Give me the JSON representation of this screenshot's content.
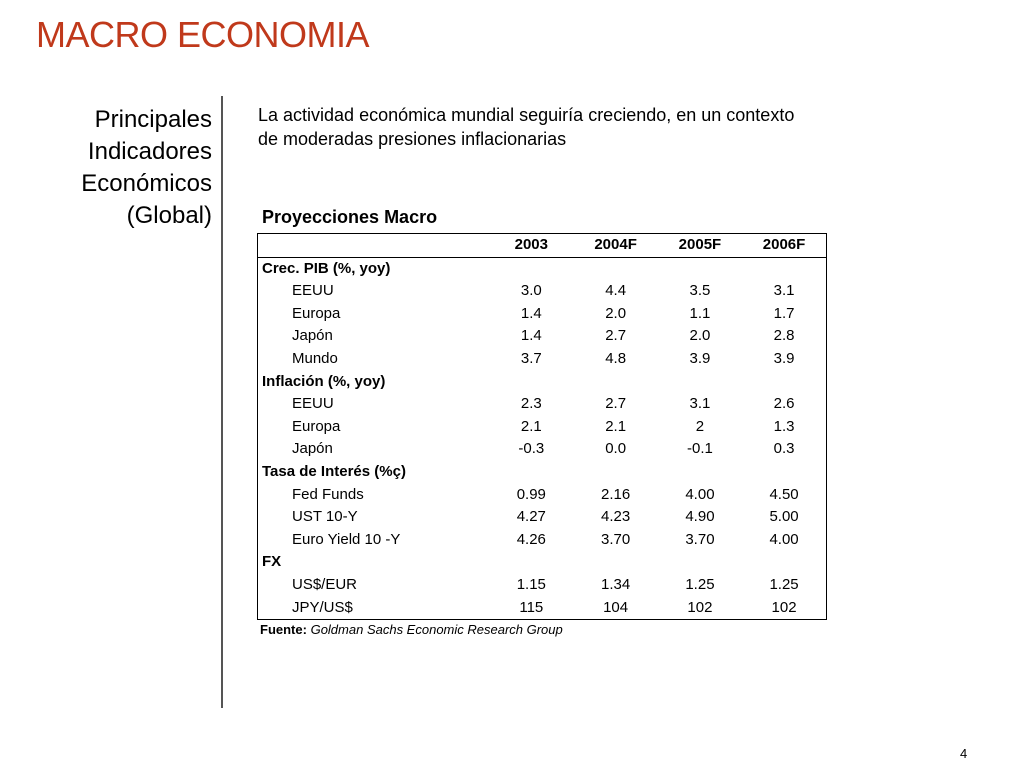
{
  "title": "MACRO ECONOMIA",
  "side_heading": [
    "Principales",
    "Indicadores",
    "Económicos",
    "(Global)"
  ],
  "subtitle": "La actividad económica mundial seguiría creciendo, en un contexto de moderadas presiones inflacionarias",
  "table": {
    "title": "Proyecciones Macro",
    "columns": [
      "2003",
      "2004F",
      "2005F",
      "2006F"
    ],
    "sections": [
      {
        "label": "Crec. PIB (%, yoy)",
        "rows": [
          {
            "label": "EEUU",
            "values": [
              "3.0",
              "4.4",
              "3.5",
              "3.1"
            ]
          },
          {
            "label": "Europa",
            "values": [
              "1.4",
              "2.0",
              "1.1",
              "1.7"
            ]
          },
          {
            "label": "Japón",
            "values": [
              "1.4",
              "2.7",
              "2.0",
              "2.8"
            ]
          },
          {
            "label": "Mundo",
            "values": [
              "3.7",
              "4.8",
              "3.9",
              "3.9"
            ]
          }
        ]
      },
      {
        "label": "Inflación (%, yoy)",
        "rows": [
          {
            "label": "EEUU",
            "values": [
              "2.3",
              "2.7",
              "3.1",
              "2.6"
            ]
          },
          {
            "label": "Europa",
            "values": [
              "2.1",
              "2.1",
              "2",
              "1.3"
            ]
          },
          {
            "label": "Japón",
            "values": [
              "-0.3",
              "0.0",
              "-0.1",
              "0.3"
            ]
          }
        ]
      },
      {
        "label": "Tasa de Interés (%ç)",
        "rows": [
          {
            "label": "Fed Funds",
            "values": [
              "0.99",
              "2.16",
              "4.00",
              "4.50"
            ]
          },
          {
            "label": "UST 10-Y",
            "values": [
              "4.27",
              "4.23",
              "4.90",
              "5.00"
            ]
          },
          {
            "label": "Euro Yield 10 -Y",
            "values": [
              "4.26",
              "3.70",
              "3.70",
              "4.00"
            ]
          }
        ]
      },
      {
        "label": "FX",
        "rows": [
          {
            "label": "US$/EUR",
            "values": [
              "1.15",
              "1.34",
              "1.25",
              "1.25"
            ]
          },
          {
            "label": "JPY/US$",
            "values": [
              "115",
              "104",
              "102",
              "102"
            ]
          }
        ]
      }
    ]
  },
  "source": {
    "label": "Fuente:",
    "text": "Goldman Sachs Economic Research Group"
  },
  "page_number": "4",
  "colors": {
    "title": "#c0391b",
    "divider": "#555555"
  }
}
